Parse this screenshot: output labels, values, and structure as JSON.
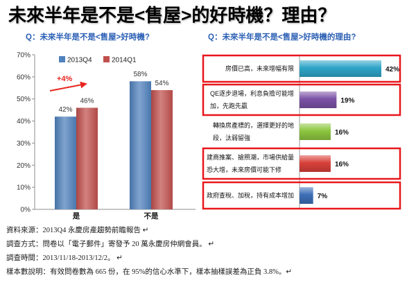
{
  "slide": {
    "title": "未來半年是不是<售屋>的好時機？理由？"
  },
  "chart_data": [
    {
      "type": "bar",
      "title": "Q：未來半年是不是<售屋>好時機?",
      "categories": [
        "是",
        "不是"
      ],
      "series": [
        {
          "name": "2013Q4",
          "values": [
            42,
            58
          ],
          "color": "#4f81bd"
        },
        {
          "name": "2014Q1",
          "values": [
            46,
            54
          ],
          "color": "#c0504d"
        }
      ],
      "unit": "%",
      "ylim": [
        0,
        70
      ],
      "y_ticks": [
        0,
        10,
        20,
        30,
        40,
        50,
        60,
        70
      ],
      "grid": false,
      "legend_position": "top",
      "annotations": [
        {
          "text": "+4%",
          "color": "#e8251f"
        }
      ]
    },
    {
      "type": "bar",
      "orientation": "horizontal",
      "title": "Q：未來半年是不是<售屋>好時機的理由?",
      "categories": [
        [
          "房價已高，未來增幅有限"
        ],
        [
          "QE逐步退場，利息負擔可能增",
          "加，先跑先贏"
        ],
        [
          "轉換房產標的，選擇更好的地",
          "段，汰弱留強"
        ],
        [
          "建商推案、搶照潮，市場供給量",
          "恐大增，未來房價可能下修"
        ],
        [
          "政府查稅、加稅，持有成本增加"
        ]
      ],
      "values": [
        42,
        19,
        16,
        16,
        7
      ],
      "unit": "%",
      "colors": [
        "#2ea5c7",
        "#7b52a6",
        "#8cc63f",
        "#d8413a",
        "#3d6fb6"
      ],
      "highlighted": [
        true,
        true,
        false,
        true,
        true
      ],
      "highlight_color": "#e8161b"
    }
  ],
  "notes": [
    "資料來源：2013Q4 永慶房產趨勢前瞻報告 ↵",
    "調查方式：問卷以「電子郵件」寄發予 20 萬永慶房仲網會員。 ↵",
    "調查時間：2013/11/18-2013/12/2。 ↵",
    "樣本數說明：有效問卷數為 665 份，在 95%的信心水準下，樣本抽樣誤差為正負 3.8%。↵"
  ]
}
